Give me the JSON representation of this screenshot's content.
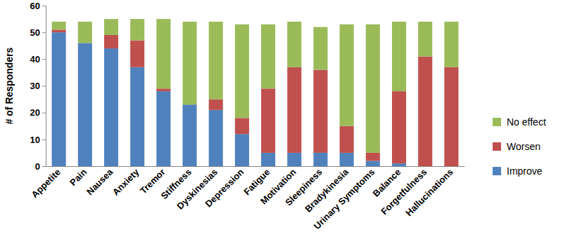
{
  "chart_data": {
    "type": "bar",
    "stacked": true,
    "grid": false,
    "legend": "right",
    "y_label": "# of Responders",
    "categories": [
      "Appetite",
      "Pain",
      "Nausea",
      "Anxiety",
      "Tremor",
      "Stiffness",
      "Dyskinesias",
      "Depression",
      "Fatigue",
      "Motivation",
      "Sleepiness",
      "Bradykinesia",
      "Urinary Symptoms",
      "Balance",
      "Forgetfulness",
      "Hallucinations"
    ],
    "series": [
      {
        "name": "Improve",
        "color": "#4f81bd",
        "values": [
          50,
          46,
          44,
          37,
          28,
          23,
          21,
          12,
          5,
          5,
          5,
          5,
          2,
          1,
          0,
          0
        ]
      },
      {
        "name": "Worsen",
        "color": "#c0504d",
        "values": [
          1,
          0,
          5,
          10,
          1,
          0,
          4,
          6,
          24,
          32,
          31,
          10,
          3,
          27,
          41,
          37
        ]
      },
      {
        "name": "No effect",
        "color": "#9bbb59",
        "values": [
          3,
          8,
          6,
          8,
          26,
          31,
          29,
          35,
          24,
          17,
          16,
          38,
          48,
          26,
          13,
          17
        ]
      }
    ],
    "ylim": [
      0,
      60
    ],
    "yticks": [
      0,
      10,
      20,
      30,
      40,
      50,
      60
    ]
  }
}
